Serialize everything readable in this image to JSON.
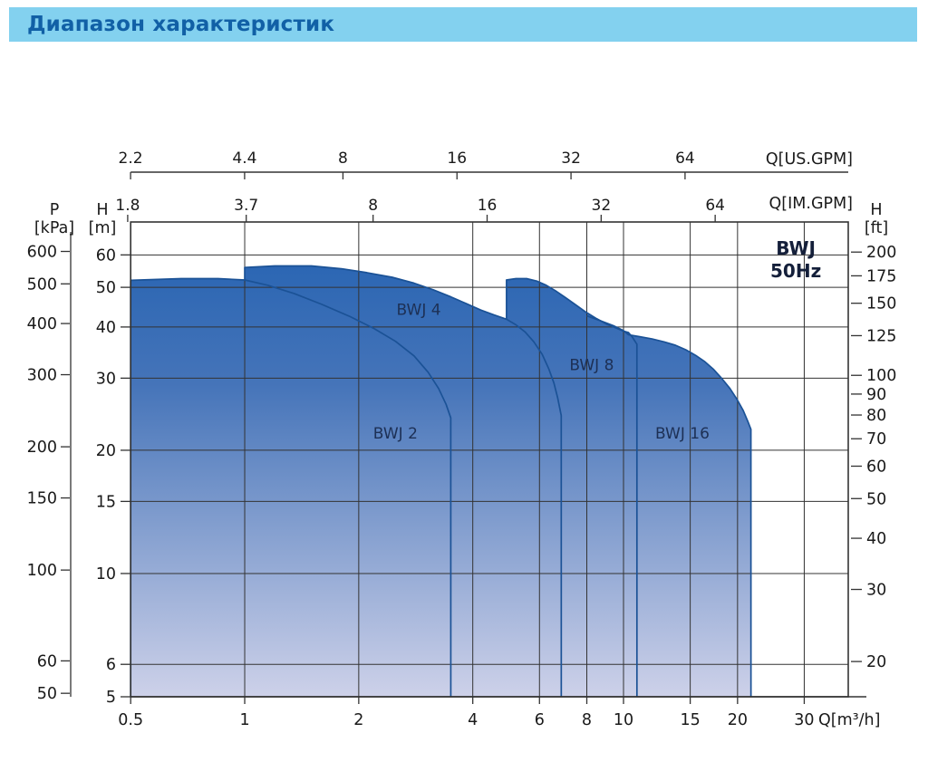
{
  "header": {
    "title": "Диапазон характеристик"
  },
  "chart_data": {
    "type": "area",
    "title": "BWJ 50Hz",
    "corner_label": {
      "line1": "BWJ",
      "line2": "50Hz",
      "pos": [
        28.5,
        62
      ],
      "pos2": [
        28.5,
        54.5
      ]
    },
    "x_axis_bottom": {
      "label": "Q[m³/h]",
      "scale": "log",
      "range": [
        0.5,
        39.2
      ],
      "ticks": [
        0.5,
        1,
        2,
        4,
        6,
        8,
        10,
        15,
        20,
        30
      ]
    },
    "x_axis_us": {
      "label": "Q[US.GPM]",
      "ticks": [
        2.2,
        4.4,
        8,
        16,
        32,
        64
      ],
      "usgpm_per_m3h": 4.403
    },
    "x_axis_im": {
      "label": "Q[IM.GPM]",
      "ticks": [
        1.8,
        3.7,
        8,
        16,
        32,
        64
      ],
      "imgpm_per_m3h": 3.666
    },
    "y_axis_m": {
      "label": [
        "H",
        "[m]"
      ],
      "scale": "log",
      "range": [
        5,
        72.2
      ],
      "ticks": [
        5,
        6,
        10,
        15,
        20,
        30,
        40,
        50,
        60
      ]
    },
    "y_axis_kpa": {
      "label": [
        "P",
        "[kPa]"
      ],
      "ticks": [
        50,
        60,
        100,
        150,
        200,
        300,
        400,
        500,
        600
      ],
      "kpa_per_m": 9.807
    },
    "y_axis_ft": {
      "label": [
        "H",
        "[ft]"
      ],
      "ticks": [
        20,
        30,
        40,
        50,
        60,
        70,
        80,
        90,
        100,
        125,
        150,
        175,
        200
      ],
      "m_per_ft": 0.3048
    },
    "grid": {
      "x_values": [
        1,
        2,
        4,
        6,
        8,
        10,
        15,
        20,
        30
      ],
      "y_values": [
        6,
        10,
        15,
        20,
        30,
        40,
        50,
        60
      ]
    },
    "series": [
      {
        "name": "BWJ 2",
        "label": "BWJ 2",
        "label_at": [
          2.5,
          22.0
        ],
        "q_start": 0.5,
        "q_end": 3.5,
        "step_from": null,
        "top_curve": [
          [
            0.5,
            52.0
          ],
          [
            0.68,
            52.5
          ],
          [
            0.85,
            52.5
          ],
          [
            1.0,
            52.1
          ],
          [
            1.15,
            50.6
          ],
          [
            1.35,
            48.3
          ],
          [
            1.6,
            45.4
          ],
          [
            1.9,
            42.4
          ],
          [
            2.2,
            39.6
          ],
          [
            2.5,
            36.9
          ],
          [
            2.8,
            34.0
          ],
          [
            3.05,
            31.0
          ],
          [
            3.25,
            28.3
          ],
          [
            3.4,
            25.9
          ],
          [
            3.5,
            24.0
          ]
        ]
      },
      {
        "name": "BWJ 4",
        "label": "BWJ 4",
        "label_at": [
          2.88,
          44.2
        ],
        "q_start": 1.0,
        "q_end": 6.85,
        "step_from": 52.1,
        "top_curve": [
          [
            1.0,
            55.9
          ],
          [
            1.2,
            56.4
          ],
          [
            1.5,
            56.4
          ],
          [
            1.8,
            55.5
          ],
          [
            2.1,
            54.3
          ],
          [
            2.45,
            52.9
          ],
          [
            2.8,
            51.2
          ],
          [
            3.15,
            49.3
          ],
          [
            3.5,
            47.4
          ],
          [
            3.85,
            45.6
          ],
          [
            4.2,
            44.0
          ],
          [
            4.55,
            42.8
          ],
          [
            4.91,
            41.8
          ],
          [
            5.2,
            40.5
          ],
          [
            5.5,
            38.9
          ],
          [
            5.8,
            36.8
          ],
          [
            6.1,
            34.3
          ],
          [
            6.35,
            31.6
          ],
          [
            6.55,
            29.2
          ],
          [
            6.7,
            26.9
          ],
          [
            6.85,
            24.3
          ]
        ]
      },
      {
        "name": "BWJ 8",
        "label": "BWJ 8",
        "label_at": [
          8.24,
          32.4
        ],
        "q_start": 4.91,
        "q_end": 10.85,
        "step_from": 41.8,
        "top_curve": [
          [
            4.91,
            52.1
          ],
          [
            5.2,
            52.5
          ],
          [
            5.55,
            52.5
          ],
          [
            5.9,
            51.8
          ],
          [
            6.25,
            50.6
          ],
          [
            6.6,
            49.1
          ],
          [
            7.0,
            47.3
          ],
          [
            7.45,
            45.4
          ],
          [
            7.95,
            43.5
          ],
          [
            8.5,
            41.9
          ],
          [
            9.05,
            40.6
          ],
          [
            9.6,
            39.7
          ],
          [
            10.0,
            39.1
          ],
          [
            10.3,
            38.8
          ],
          [
            10.55,
            37.8
          ],
          [
            10.85,
            36.3
          ]
        ]
      },
      {
        "name": "BWJ 16",
        "label": "BWJ 16",
        "label_at": [
          14.3,
          22.0
        ],
        "q_start": 8.0,
        "q_end": 21.7,
        "step_from": null,
        "top_curve": [
          [
            8.0,
            42.6
          ],
          [
            8.7,
            41.4
          ],
          [
            9.4,
            40.3
          ],
          [
            10.0,
            39.2
          ],
          [
            10.3,
            38.3
          ],
          [
            11.0,
            37.9
          ],
          [
            11.9,
            37.4
          ],
          [
            12.8,
            36.8
          ],
          [
            13.7,
            36.1
          ],
          [
            14.6,
            35.2
          ],
          [
            15.5,
            34.1
          ],
          [
            16.4,
            32.9
          ],
          [
            17.3,
            31.5
          ],
          [
            18.2,
            29.9
          ],
          [
            19.1,
            28.3
          ],
          [
            19.9,
            26.7
          ],
          [
            20.7,
            25.0
          ],
          [
            21.3,
            23.5
          ],
          [
            21.7,
            22.5
          ]
        ]
      }
    ],
    "colors": {
      "header_bg": "#83d1ef",
      "header_text": "#1160a6",
      "fill_top": "#2b66b3",
      "fill_mid": "#4574b9",
      "fill_bottom": "#cdd1e9",
      "curve": "#1b5296",
      "grid": "#333333",
      "axis_text": "#1a1a1a",
      "series_label": "#1d3055",
      "corner_label": "#141f3a"
    }
  }
}
